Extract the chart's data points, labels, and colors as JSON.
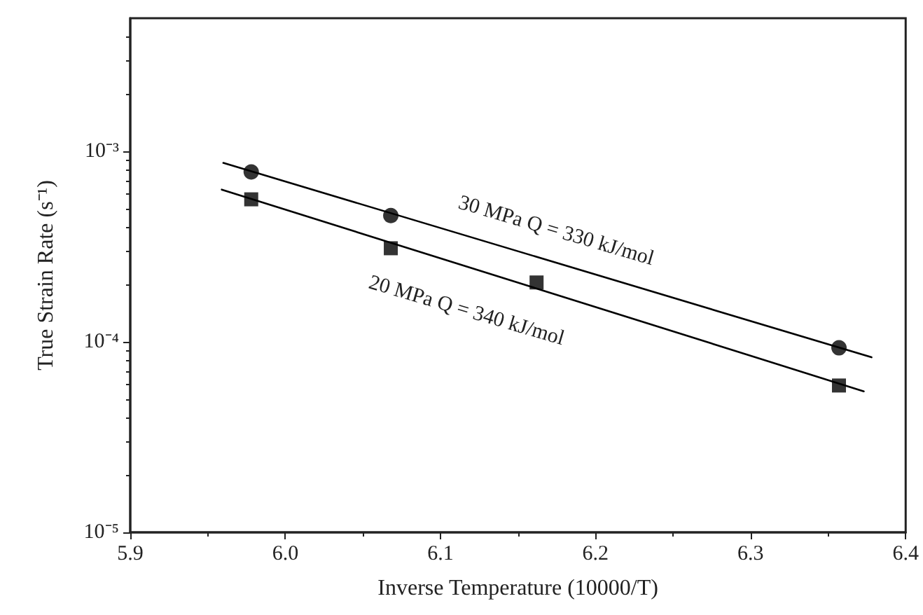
{
  "chart_data": {
    "type": "scatter",
    "xlabel": "Inverse Temperature (10000/T)",
    "ylabel": "True Strain Rate (s⁻¹)",
    "log": true,
    "xlim": [
      5.9,
      6.4
    ],
    "xticks": [
      5.9,
      {
        "value": 6.0,
        "label": "6.0"
      },
      6.1,
      6.2,
      6.3,
      6.4
    ],
    "ylim": [
      1e-05,
      0.005
    ],
    "yticks": [
      {
        "value": 1e-05,
        "label": "10⁻⁵"
      },
      {
        "value": 0.0001,
        "label": "10⁻⁴"
      },
      {
        "value": 0.001,
        "label": "10⁻³"
      }
    ],
    "grid": false,
    "series": [
      {
        "marker": "circle",
        "color": "#000000",
        "x": [
          5.978,
          6.068,
          6.357
        ],
        "values": [
          0.00078,
          0.00046,
          9.3e-05
        ]
      },
      {
        "marker": "square",
        "color": "#000000",
        "x": [
          5.978,
          6.068,
          6.162,
          6.357
        ],
        "values": [
          0.00056,
          0.00031,
          0.000205,
          5.9e-05
        ]
      },
      {
        "type": "line",
        "marker": "none",
        "color": "#000000",
        "x": [
          5.96,
          6.378
        ],
        "values": [
          0.00087,
          8.3e-05
        ]
      },
      {
        "type": "line",
        "marker": "none",
        "color": "#000000",
        "x": [
          5.959,
          6.373
        ],
        "values": [
          0.00063,
          5.5e-05
        ]
      }
    ],
    "annotations": [
      "30 MPa Q = 330 kJ/mol",
      "20 MPa Q = 340 kJ/mol"
    ]
  }
}
